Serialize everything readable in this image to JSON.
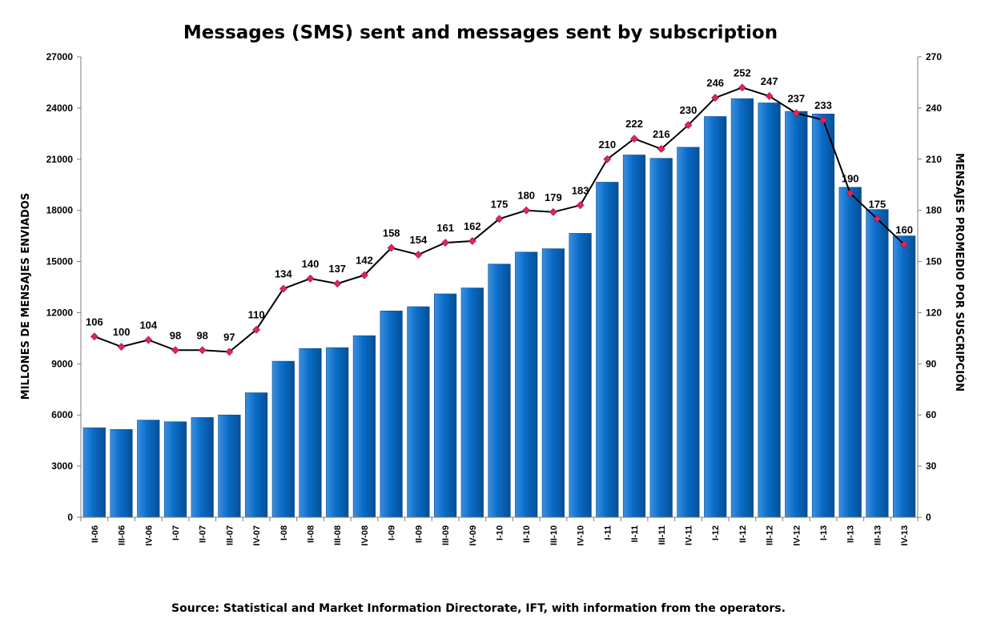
{
  "chart_data": {
    "type": "bar",
    "title": "Messages (SMS) sent and messages sent by subscription",
    "source": "Source: Statistical and Market Information Directorate, IFT, with information from the operators.",
    "ylabel_left": "MILLONES DE MENSAJES ENVIADOS",
    "ylabel_right": "MENSAJES PROMEDIO POR SUSCRIPCIÓN",
    "ylim_left": [
      0,
      27000
    ],
    "yticks_left": [
      0,
      3000,
      6000,
      9000,
      12000,
      15000,
      18000,
      21000,
      24000,
      27000
    ],
    "ylim_right": [
      0,
      270
    ],
    "yticks_right": [
      0,
      30,
      60,
      90,
      120,
      150,
      180,
      210,
      240,
      270
    ],
    "categories": [
      "II-06",
      "III-06",
      "IV-06",
      "I-07",
      "II-07",
      "III-07",
      "IV-07",
      "I-08",
      "II-08",
      "III-08",
      "IV-08",
      "I-09",
      "II-09",
      "III-09",
      "IV-09",
      "I-10",
      "II-10",
      "III-10",
      "IV-10",
      "I-11",
      "II-11",
      "III-11",
      "IV-11",
      "I-12",
      "II-12",
      "III-12",
      "IV-12",
      "I-13",
      "II-13",
      "III-13",
      "IV-13"
    ],
    "series": [
      {
        "kind": "bar",
        "axis": "left",
        "color": "#0a6cc6",
        "values": [
          5250,
          5150,
          5700,
          5600,
          5850,
          6000,
          7300,
          9150,
          9900,
          9950,
          10650,
          12100,
          12350,
          13100,
          13450,
          14850,
          15550,
          15750,
          16650,
          19650,
          21250,
          21050,
          21700,
          23500,
          24550,
          24300,
          23800,
          23650,
          19350,
          18050,
          16500
        ]
      },
      {
        "kind": "line",
        "axis": "right",
        "color": "#000000",
        "marker_color": "#e0245e",
        "values": [
          106,
          100,
          104,
          98,
          98,
          97,
          110,
          134,
          140,
          137,
          142,
          158,
          154,
          161,
          162,
          175,
          180,
          179,
          183,
          210,
          222,
          216,
          230,
          246,
          252,
          247,
          237,
          233,
          190,
          175,
          160
        ]
      }
    ],
    "grid": false,
    "legend": "none"
  }
}
